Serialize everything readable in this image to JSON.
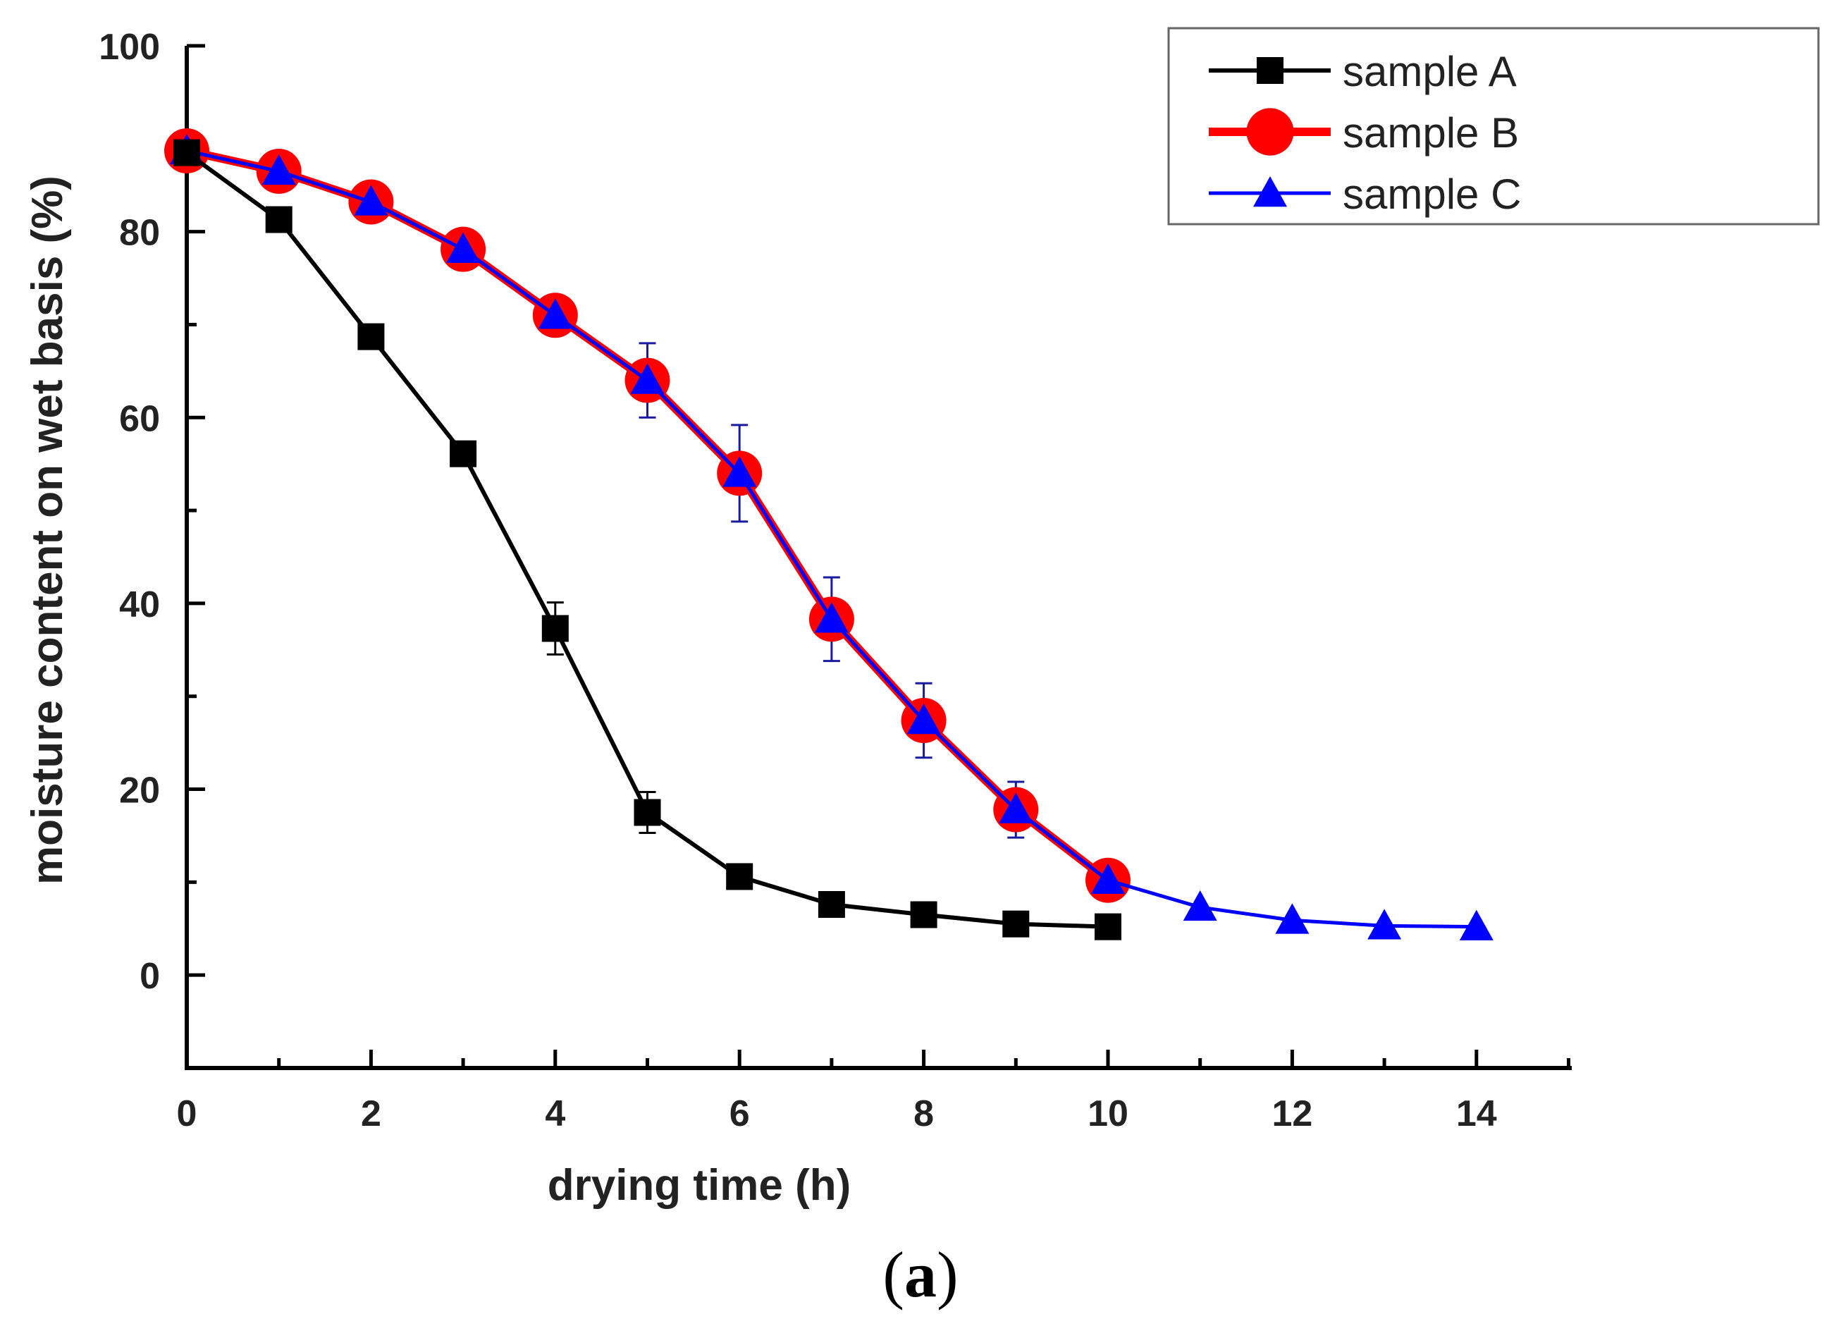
{
  "chart_data": {
    "type": "line",
    "title": "",
    "xlabel": "drying time (h)",
    "ylabel": "moisture content on wet basis (%)",
    "xlim": [
      0,
      15
    ],
    "ylim": [
      -10,
      100
    ],
    "xticks": [
      0,
      2,
      4,
      6,
      8,
      10,
      12,
      14
    ],
    "yticks": [
      0,
      20,
      40,
      60,
      80,
      100
    ],
    "legend_position": "top-right",
    "series": [
      {
        "name": "sample A",
        "color": "#000000",
        "marker": "square",
        "x": [
          0,
          1,
          2,
          3,
          4,
          5,
          6,
          7,
          8,
          9,
          10
        ],
        "y": [
          88.5,
          81.3,
          68.7,
          56.1,
          37.3,
          17.5,
          10.6,
          7.6,
          6.5,
          5.5,
          5.2
        ],
        "error": [
          0,
          0,
          0,
          0,
          2.8,
          2.2,
          0,
          0,
          0,
          0,
          0
        ]
      },
      {
        "name": "sample B",
        "color": "#ff0000",
        "marker": "circle",
        "x": [
          0,
          1,
          2,
          3,
          4,
          5,
          6,
          7,
          8,
          9,
          10
        ],
        "y": [
          88.7,
          86.5,
          83.2,
          78.1,
          71.0,
          64.0,
          54.0,
          38.3,
          27.4,
          17.8,
          10.2
        ],
        "error": [
          0,
          0,
          0,
          0,
          0,
          4.0,
          5.2,
          4.5,
          4.0,
          3.0,
          0
        ]
      },
      {
        "name": "sample C",
        "color": "#0000ff",
        "marker": "triangle",
        "x": [
          0,
          1,
          2,
          3,
          4,
          5,
          6,
          7,
          8,
          9,
          10,
          11,
          12,
          13,
          14
        ],
        "y": [
          88.7,
          86.5,
          83.2,
          78.1,
          71.0,
          64.0,
          54.0,
          38.3,
          27.4,
          17.8,
          10.2,
          7.3,
          5.9,
          5.3,
          5.2
        ],
        "error": [
          0,
          0,
          0,
          0,
          0,
          0,
          0,
          0,
          0,
          0,
          0,
          0,
          0,
          0,
          0
        ]
      }
    ]
  },
  "figure": {
    "panel_label_open": "(",
    "panel_label_letter": "a",
    "panel_label_close": ")"
  }
}
